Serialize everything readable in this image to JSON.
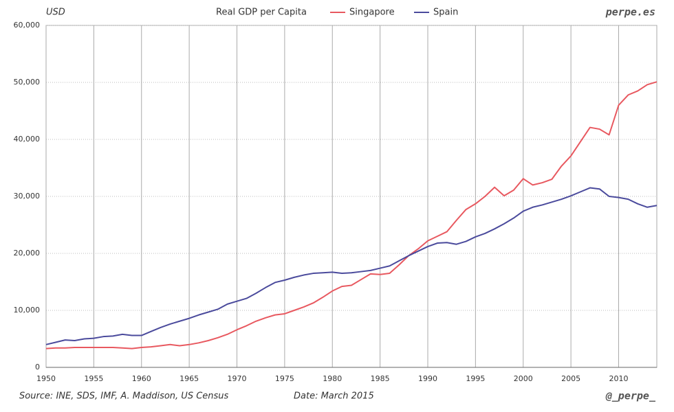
{
  "chart_data": {
    "type": "line",
    "title": "Real GDP per Capita",
    "unit_label": "USD",
    "brand": "perpe.es",
    "source": "Source: INE, SDS, IMF, A. Maddison, US Census",
    "date_note": "Date: March 2015",
    "handle": "@_perpe_",
    "x": [
      1950,
      1951,
      1952,
      1953,
      1954,
      1955,
      1956,
      1957,
      1958,
      1959,
      1960,
      1961,
      1962,
      1963,
      1964,
      1965,
      1966,
      1967,
      1968,
      1969,
      1970,
      1971,
      1972,
      1973,
      1974,
      1975,
      1976,
      1977,
      1978,
      1979,
      1980,
      1981,
      1982,
      1983,
      1984,
      1985,
      1986,
      1987,
      1988,
      1989,
      1990,
      1991,
      1992,
      1993,
      1994,
      1995,
      1996,
      1997,
      1998,
      1999,
      2000,
      2001,
      2002,
      2003,
      2004,
      2005,
      2006,
      2007,
      2008,
      2009,
      2010,
      2011,
      2012,
      2013,
      2014
    ],
    "series": [
      {
        "name": "Singapore",
        "color": "#e8585f",
        "values": [
          3300,
          3400,
          3400,
          3500,
          3500,
          3500,
          3500,
          3500,
          3400,
          3300,
          3500,
          3600,
          3800,
          4000,
          3800,
          4000,
          4300,
          4700,
          5200,
          5800,
          6600,
          7300,
          8100,
          8700,
          9200,
          9400,
          10000,
          10600,
          11300,
          12300,
          13400,
          14200,
          14400,
          15400,
          16400,
          16300,
          16500,
          18000,
          19600,
          20800,
          22200,
          23000,
          23800,
          25800,
          27700,
          28700,
          30000,
          31600,
          30100,
          31100,
          33100,
          32000,
          32400,
          33000,
          35300,
          37100,
          39600,
          42100,
          41800,
          40800,
          46000,
          47800,
          48500,
          49600,
          50100
        ]
      },
      {
        "name": "Spain",
        "color": "#4a4a9c",
        "values": [
          4000,
          4400,
          4800,
          4700,
          5000,
          5100,
          5400,
          5500,
          5800,
          5600,
          5600,
          6300,
          7000,
          7600,
          8100,
          8600,
          9200,
          9700,
          10200,
          11100,
          11600,
          12100,
          13000,
          14000,
          14900,
          15300,
          15800,
          16200,
          16500,
          16600,
          16700,
          16500,
          16600,
          16800,
          17000,
          17400,
          17800,
          18700,
          19600,
          20400,
          21200,
          21800,
          21900,
          21600,
          22100,
          22900,
          23500,
          24300,
          25200,
          26200,
          27400,
          28100,
          28500,
          29000,
          29500,
          30100,
          30800,
          31500,
          31300,
          30000,
          29800,
          29500,
          28700,
          28100,
          28400
        ]
      }
    ],
    "xlim": [
      1950,
      2014
    ],
    "xticks": [
      1950,
      1955,
      1960,
      1965,
      1970,
      1975,
      1980,
      1985,
      1990,
      1995,
      2000,
      2005,
      2010
    ],
    "ylim": [
      0,
      60000
    ],
    "yticks": [
      0,
      {
        "value": 10000,
        "label": "10,000"
      },
      {
        "value": 20000,
        "label": "20,000"
      },
      {
        "value": 30000,
        "label": "30,000"
      },
      {
        "value": 40000,
        "label": "40,000"
      },
      {
        "value": 50000,
        "label": "50,000"
      },
      {
        "value": 60000,
        "label": "60,000"
      }
    ],
    "grid": true
  }
}
